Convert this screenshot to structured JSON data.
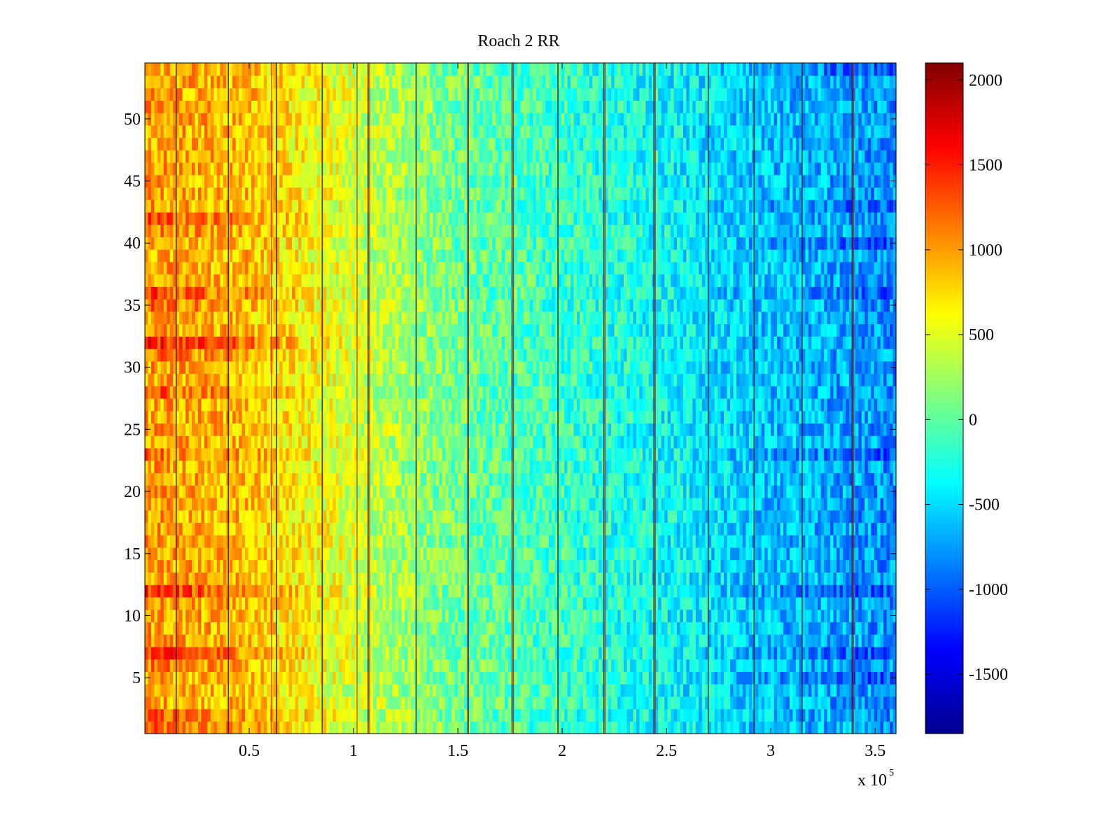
{
  "chart_data": {
    "type": "heatmap",
    "title": "Roach 2 RR",
    "xlabel": "",
    "ylabel": "",
    "x_range": [
      0,
      360000
    ],
    "y_range": [
      0.5,
      54.5
    ],
    "n_rows": 54,
    "x_ticks": [
      {
        "value": 50000,
        "label": "0.5"
      },
      {
        "value": 100000,
        "label": "1"
      },
      {
        "value": 150000,
        "label": "1.5"
      },
      {
        "value": 200000,
        "label": "2"
      },
      {
        "value": 250000,
        "label": "2.5"
      },
      {
        "value": 300000,
        "label": "3"
      },
      {
        "value": 350000,
        "label": "3.5"
      }
    ],
    "x_multiplier": {
      "base": "x 10",
      "exponent": "5"
    },
    "y_ticks": [
      {
        "value": 5,
        "label": "5"
      },
      {
        "value": 10,
        "label": "10"
      },
      {
        "value": 15,
        "label": "15"
      },
      {
        "value": 20,
        "label": "20"
      },
      {
        "value": 25,
        "label": "25"
      },
      {
        "value": 30,
        "label": "30"
      },
      {
        "value": 35,
        "label": "35"
      },
      {
        "value": 40,
        "label": "40"
      },
      {
        "value": 45,
        "label": "45"
      },
      {
        "value": 50,
        "label": "50"
      }
    ],
    "colorbar": {
      "colormap": "jet",
      "clim": [
        -1850,
        2100
      ],
      "ticks": [
        {
          "value": 2000,
          "label": "2000"
        },
        {
          "value": 1500,
          "label": "1500"
        },
        {
          "value": 1000,
          "label": "1000"
        },
        {
          "value": 500,
          "label": "500"
        },
        {
          "value": 0,
          "label": "0"
        },
        {
          "value": -500,
          "label": "-500"
        },
        {
          "value": -1000,
          "label": "-1000"
        },
        {
          "value": -1500,
          "label": "-1500"
        }
      ]
    },
    "trend": {
      "x": [
        0,
        50000,
        100000,
        150000,
        200000,
        250000,
        300000,
        360000
      ],
      "value": [
        1000,
        850,
        450,
        50,
        -150,
        -350,
        -600,
        -800
      ]
    },
    "row_offsets_note": "rows 32, 42, 36, 7, 12 are warmer (higher values) on the left side",
    "warm_rows": [
      {
        "row": 32,
        "boost": 500
      },
      {
        "row": 31,
        "boost": 200
      },
      {
        "row": 42,
        "boost": 300
      },
      {
        "row": 41,
        "boost": 150
      },
      {
        "row": 36,
        "boost": 350
      },
      {
        "row": 35,
        "boost": 150
      },
      {
        "row": 7,
        "boost": 450
      },
      {
        "row": 6,
        "boost": 150
      },
      {
        "row": 12,
        "boost": 450
      },
      {
        "row": 28,
        "boost": 250
      },
      {
        "row": 23,
        "boost": 200
      },
      {
        "row": 2,
        "boost": 250
      },
      {
        "row": 1,
        "boost": 200
      }
    ],
    "cool_rows_right": [
      54,
      43,
      40,
      36,
      23,
      12,
      7,
      5
    ],
    "vertical_lines_x": [
      15000,
      40000,
      63000,
      85000,
      107000,
      130000,
      155000,
      176000,
      198000,
      220000,
      244000,
      270000,
      292000,
      315000,
      339000
    ],
    "red_lines_x": [
      60000,
      101000,
      107000,
      154000,
      176000,
      220000,
      244000,
      339000
    ]
  }
}
